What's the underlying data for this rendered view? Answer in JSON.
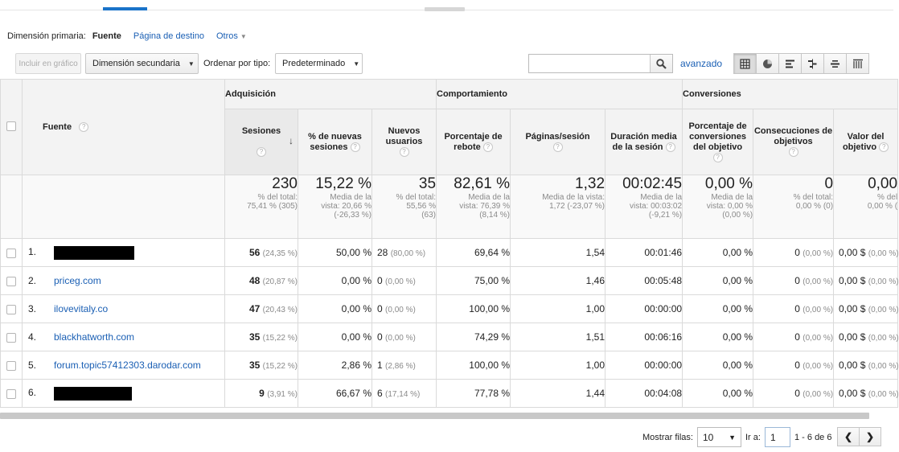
{
  "primary_dimension": {
    "label": "Dimensión primaria:",
    "active": "Fuente",
    "links": [
      "Página de destino",
      "Otros"
    ]
  },
  "toolbar": {
    "plot_button": "Incluir en gráfico",
    "secondary_dimension": "Dimensión secundaria",
    "sort_label": "Ordenar por tipo:",
    "sort_value": "Predeterminado",
    "search_value": "",
    "advanced": "avanzado",
    "view_icons": [
      "table-view-icon",
      "pie-view-icon",
      "bar-view-icon",
      "comparison-view-icon",
      "term-cloud-icon",
      "pivot-view-icon"
    ]
  },
  "groups": {
    "acquisition": "Adquisición",
    "behavior": "Comportamiento",
    "conversions": "Conversiones"
  },
  "columns": {
    "source": "Fuente",
    "sessions": "Sesiones",
    "new_sessions": "% de nuevas sesiones",
    "new_users": "Nuevos usuarios",
    "bounce": "Porcentaje de rebote",
    "pages": "Páginas/sesión",
    "duration": "Duración media de la sesión",
    "conv_rate": "Porcentaje de conversiones del objetivo",
    "goals": "Consecuciones de objetivos",
    "value": "Valor del objetivo"
  },
  "totals": {
    "sessions": {
      "big": "230",
      "l1": "% del total:",
      "l2": "75,41 % (305)"
    },
    "new_sessions": {
      "big": "15,22 %",
      "l1": "Media de la",
      "l2": "vista: 20,66 %",
      "l3": "(-26,33 %)"
    },
    "new_users": {
      "big": "35",
      "l1": "% del total:",
      "l2": "55,56 %",
      "l3": "(63)"
    },
    "bounce": {
      "big": "82,61 %",
      "l1": "Media de la",
      "l2": "vista: 76,39 %",
      "l3": "(8,14 %)"
    },
    "pages": {
      "big": "1,32",
      "l1": "Media de la vista:",
      "l2": "1,72 (-23,07 %)"
    },
    "duration": {
      "big": "00:02:45",
      "l1": "Media de la",
      "l2": "vista: 00:03:02",
      "l3": "(-9,21 %)"
    },
    "conv_rate": {
      "big": "0,00 %",
      "l1": "Media de la",
      "l2": "vista: 0,00 %",
      "l3": "(0,00 %)"
    },
    "goals": {
      "big": "0",
      "l1": "% del total:",
      "l2": "0,00 % (0)"
    },
    "value": {
      "big": "0,00",
      "l1": "% del",
      "l2": "0,00 % ("
    }
  },
  "rows": [
    {
      "n": "1.",
      "source": "",
      "redacted": true,
      "sess": "56",
      "sess_pct": "(24,35 %)",
      "new_sess": "50,00 %",
      "users": "28",
      "users_pct": "(80,00 %)",
      "bounce": "69,64 %",
      "pages": "1,54",
      "dur": "00:01:46",
      "conv": "0,00 %",
      "goals": "0",
      "goals_pct": "(0,00 %)",
      "val": "0,00 $",
      "val_pct": "(0,00 %)"
    },
    {
      "n": "2.",
      "source": "priceg.com",
      "redacted": false,
      "sess": "48",
      "sess_pct": "(20,87 %)",
      "new_sess": "0,00 %",
      "users": "0",
      "users_pct": "(0,00 %)",
      "bounce": "75,00 %",
      "pages": "1,46",
      "dur": "00:05:48",
      "conv": "0,00 %",
      "goals": "0",
      "goals_pct": "(0,00 %)",
      "val": "0,00 $",
      "val_pct": "(0,00 %)"
    },
    {
      "n": "3.",
      "source": "ilovevitaly.co",
      "redacted": false,
      "sess": "47",
      "sess_pct": "(20,43 %)",
      "new_sess": "0,00 %",
      "users": "0",
      "users_pct": "(0,00 %)",
      "bounce": "100,00 %",
      "pages": "1,00",
      "dur": "00:00:00",
      "conv": "0,00 %",
      "goals": "0",
      "goals_pct": "(0,00 %)",
      "val": "0,00 $",
      "val_pct": "(0,00 %)"
    },
    {
      "n": "4.",
      "source": "blackhatworth.com",
      "redacted": false,
      "sess": "35",
      "sess_pct": "(15,22 %)",
      "new_sess": "0,00 %",
      "users": "0",
      "users_pct": "(0,00 %)",
      "bounce": "74,29 %",
      "pages": "1,51",
      "dur": "00:06:16",
      "conv": "0,00 %",
      "goals": "0",
      "goals_pct": "(0,00 %)",
      "val": "0,00 $",
      "val_pct": "(0,00 %)"
    },
    {
      "n": "5.",
      "source": "forum.topic57412303.darodar.com",
      "redacted": false,
      "sess": "35",
      "sess_pct": "(15,22 %)",
      "new_sess": "2,86 %",
      "users": "1",
      "users_pct": "(2,86 %)",
      "bounce": "100,00 %",
      "pages": "1,00",
      "dur": "00:00:00",
      "conv": "0,00 %",
      "goals": "0",
      "goals_pct": "(0,00 %)",
      "val": "0,00 $",
      "val_pct": "(0,00 %)"
    },
    {
      "n": "6.",
      "source": "",
      "redacted": true,
      "sess": "9",
      "sess_pct": "(3,91 %)",
      "new_sess": "66,67 %",
      "users": "6",
      "users_pct": "(17,14 %)",
      "bounce": "77,78 %",
      "pages": "1,44",
      "dur": "00:04:08",
      "conv": "0,00 %",
      "goals": "0",
      "goals_pct": "(0,00 %)",
      "val": "0,00 $",
      "val_pct": "(0,00 %)"
    }
  ],
  "pager": {
    "rows_label": "Mostrar filas:",
    "rows_value": "10",
    "goto_label": "Ir a:",
    "goto_value": "1",
    "range": "1 - 6 de 6"
  }
}
